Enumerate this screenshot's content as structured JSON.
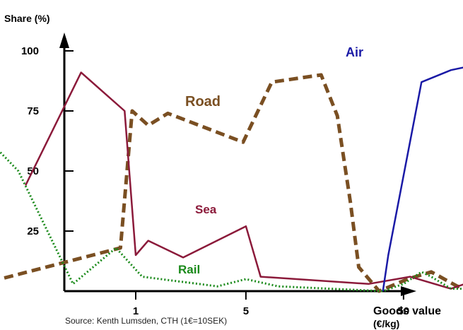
{
  "chart_data": {
    "type": "line",
    "ylabel": "Share (%)",
    "xlabel_line1": "Goods value",
    "xlabel_line2": "(€/kg)",
    "source": "Source: Kenth Lumsden, CTH (1€=10SEK)",
    "x_scale": "log",
    "ylim": [
      0,
      100
    ],
    "y_ticks": [
      {
        "value": 100,
        "label": "100"
      },
      {
        "value": 75,
        "label": "75"
      },
      {
        "value": 50,
        "label": "50"
      },
      {
        "value": 25,
        "label": "25"
      }
    ],
    "x_ticks": [
      {
        "value": 1,
        "label": "1"
      },
      {
        "value": 5,
        "label": "5"
      },
      {
        "value": 50,
        "label": "50"
      }
    ],
    "series": [
      {
        "name": "Road",
        "color": "#7a4f22",
        "style": "dashed",
        "points": [
          [
            0.12,
            4
          ],
          [
            0.8,
            18
          ],
          [
            0.95,
            75
          ],
          [
            1.2,
            69
          ],
          [
            1.6,
            74
          ],
          [
            4.8,
            62
          ],
          [
            7.3,
            87
          ],
          [
            15,
            90
          ],
          [
            19,
            73
          ],
          [
            23,
            37
          ],
          [
            26,
            10
          ],
          [
            35,
            0
          ],
          [
            53,
            5
          ],
          [
            75,
            8
          ],
          [
            110,
            2
          ],
          [
            160,
            0
          ]
        ]
      },
      {
        "name": "Sea",
        "color": "#8b1a3a",
        "style": "solid",
        "points": [
          [
            0.2,
            44
          ],
          [
            0.45,
            91
          ],
          [
            0.85,
            75
          ],
          [
            1.0,
            15
          ],
          [
            1.2,
            21
          ],
          [
            2.0,
            14
          ],
          [
            5.0,
            27
          ],
          [
            6.2,
            6
          ],
          [
            30,
            3
          ],
          [
            55,
            6
          ],
          [
            100,
            1
          ],
          [
            150,
            5
          ]
        ]
      },
      {
        "name": "Rail",
        "color": "#1a8a1a",
        "style": "dotted",
        "points": [
          [
            0.12,
            62
          ],
          [
            0.18,
            50
          ],
          [
            0.4,
            3
          ],
          [
            0.75,
            18
          ],
          [
            1.1,
            6
          ],
          [
            3.3,
            2
          ],
          [
            5.0,
            5
          ],
          [
            8.0,
            2
          ],
          [
            37,
            0
          ],
          [
            50,
            3
          ],
          [
            65,
            8
          ],
          [
            75,
            6
          ],
          [
            100,
            1
          ],
          [
            150,
            1
          ]
        ]
      },
      {
        "name": "Air",
        "color": "#1a1aa6",
        "style": "solid",
        "points": [
          [
            37,
            0
          ],
          [
            40,
            15
          ],
          [
            65,
            87
          ],
          [
            100,
            92
          ],
          [
            140,
            94
          ]
        ]
      }
    ]
  }
}
